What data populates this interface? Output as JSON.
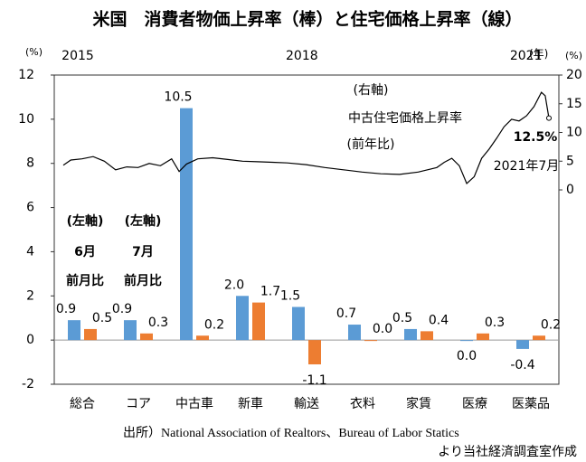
{
  "chart_data": {
    "type": "bar",
    "title": "米国　消費者物価上昇率（棒）と住宅価格上昇率（線）",
    "categories": [
      "総合",
      "コア",
      "中古車",
      "新車",
      "輸送",
      "衣料",
      "家賃",
      "医療",
      "医薬品"
    ],
    "series": [
      {
        "name": "6月",
        "color": "#5b9bd5",
        "values": [
          0.9,
          0.9,
          10.5,
          2.0,
          1.5,
          0.7,
          0.5,
          0.0,
          -0.4
        ],
        "value_labels": [
          "0.9",
          "0.9",
          "10.5",
          "2.0",
          "1.5",
          "0.7",
          "0.5",
          "0.0",
          "-0.4"
        ]
      },
      {
        "name": "7月",
        "color": "#ed7d31",
        "values": [
          0.5,
          0.3,
          0.2,
          1.7,
          -1.1,
          0.0,
          0.4,
          0.3,
          0.2
        ],
        "value_labels": [
          "0.5",
          "0.3",
          "0.2",
          "1.7",
          "-1.1",
          "0.0",
          "0.4",
          "0.3",
          "0.2"
        ]
      }
    ],
    "ylim": [
      -2,
      12
    ],
    "yticks": [
      -2,
      0,
      2,
      4,
      6,
      8,
      10,
      12
    ],
    "y_unit": "(%)",
    "line": {
      "type": "line",
      "name": "中古住宅価格上昇率",
      "color": "#000000",
      "axis": "y2",
      "x": [
        2015.0,
        2015.1,
        2015.25,
        2015.4,
        2015.55,
        2015.7,
        2015.85,
        2016.0,
        2016.15,
        2016.3,
        2016.45,
        2016.55,
        2016.65,
        2016.8,
        2017.0,
        2017.2,
        2017.4,
        2017.6,
        2017.8,
        2018.0,
        2018.25,
        2018.5,
        2018.75,
        2019.0,
        2019.25,
        2019.5,
        2019.75,
        2020.0,
        2020.1,
        2020.2,
        2020.3,
        2020.4,
        2020.5,
        2020.6,
        2020.7,
        2020.8,
        2020.9,
        2021.0,
        2021.1,
        2021.2,
        2021.3,
        2021.4,
        2021.45,
        2021.5
      ],
      "values": [
        4.3,
        5.2,
        5.4,
        5.8,
        5.0,
        3.5,
        4.0,
        3.9,
        4.6,
        4.2,
        5.4,
        3.2,
        4.5,
        5.4,
        5.6,
        5.3,
        5.0,
        4.9,
        4.8,
        4.7,
        4.4,
        3.9,
        3.5,
        3.1,
        2.8,
        2.7,
        3.1,
        3.9,
        4.8,
        5.5,
        4.2,
        1.1,
        2.3,
        5.5,
        7.1,
        9.0,
        11.0,
        12.3,
        12.0,
        12.9,
        14.5,
        17.0,
        16.4,
        12.5
      ]
    },
    "y2lim": [
      -33.85,
      20
    ],
    "y2ticks": [
      0,
      5,
      10,
      15,
      20
    ],
    "y2_unit": "(%)",
    "xlim": [
      2015,
      2021.5
    ],
    "xticks": [
      2015,
      2018,
      2021
    ],
    "x_unit": "(年)",
    "annotations": [
      "(右軸)",
      "中古住宅価格上昇率",
      "(前年比)",
      "12.5%",
      "2021年7月",
      "(左軸)",
      "(左軸)",
      "前月比",
      "前月比"
    ],
    "source": [
      "出所）National Association of Realtors、Bureau of Labor Statics",
      "より当社経済調査室作成"
    ]
  }
}
